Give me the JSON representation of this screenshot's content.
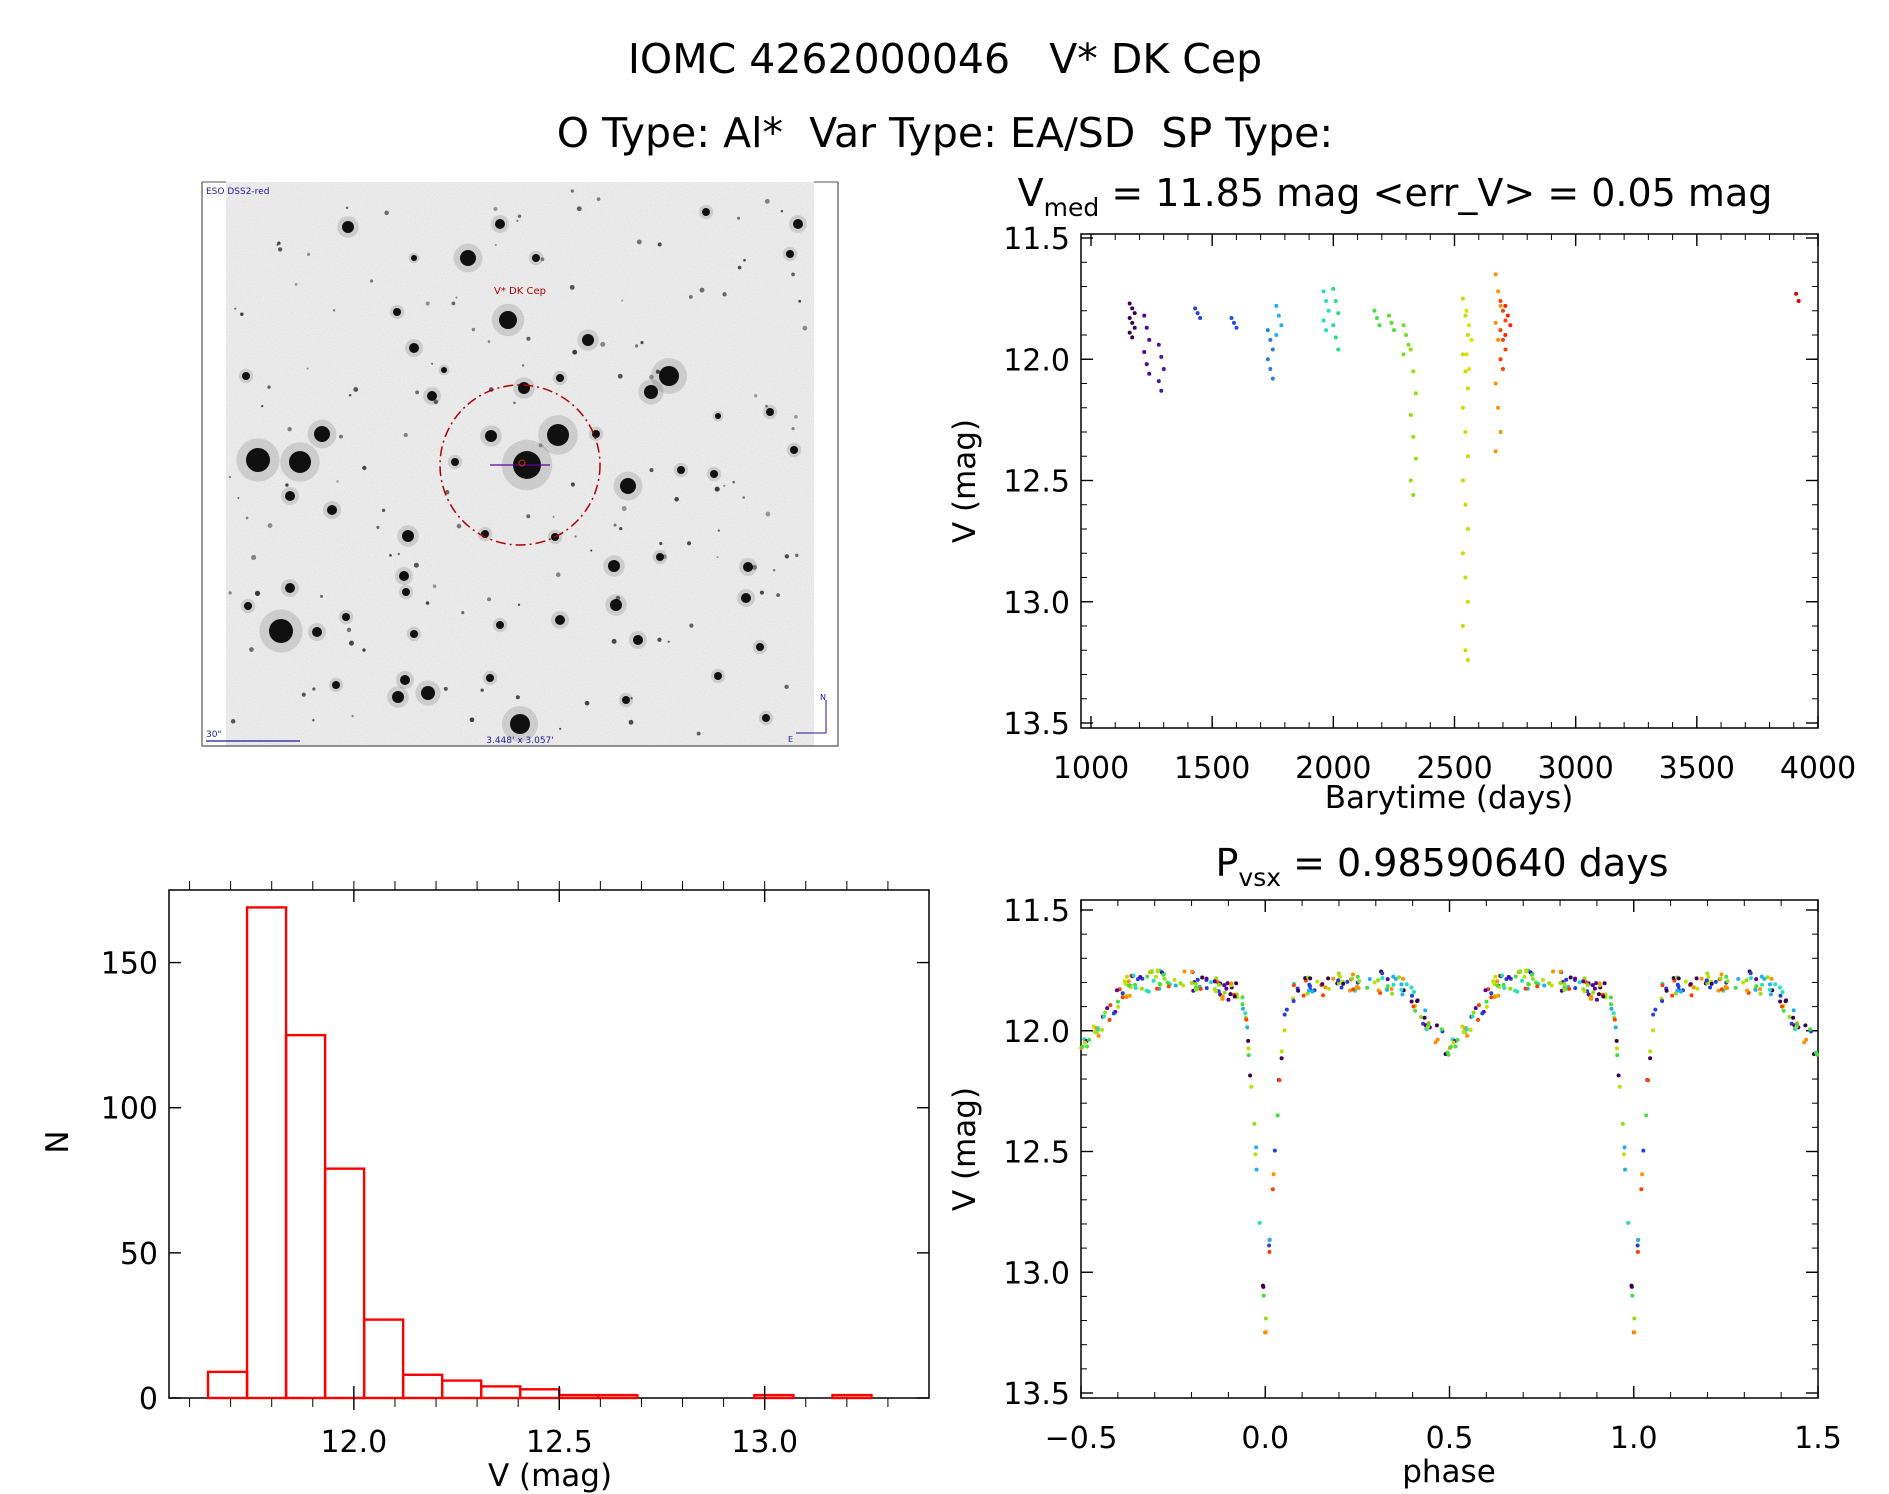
{
  "header": {
    "title_line1": "IOMC 4262000046   V* DK Cep",
    "title_line2": "O Type: Al*  Var Type: EA/SD  SP Type:"
  },
  "finder": {
    "survey_label": "ESO DSS2-red",
    "target_label": "V* DK Cep",
    "scale_label": "30\"",
    "fov_label": "3.448' x 3.057'",
    "compass_n": "N",
    "compass_e": "E"
  },
  "colors": {
    "histogram": "#ff0000",
    "marker_circle": "#b00000",
    "axis": "#000000"
  },
  "chart_data": [
    {
      "id": "lightcurve",
      "type": "scatter",
      "title_main": "V",
      "title_sub": "med",
      "title_rest": " = 11.85 mag <err_V> = 0.05 mag",
      "xlabel": "Barytime (days)",
      "ylabel": "V (mag)",
      "xlim": [
        1000,
        4000
      ],
      "ylim": [
        13.5,
        11.5
      ],
      "xticks": [
        1000,
        1500,
        2000,
        2500,
        3000,
        3500,
        4000
      ],
      "yticks": [
        11.5,
        12.0,
        12.5,
        13.0,
        13.5
      ],
      "ytick_labels": [
        "11.5",
        "12.0",
        "12.5",
        "13.0",
        "13.5"
      ],
      "groups": [
        {
          "x": 1170,
          "y": [
            11.77,
            11.79,
            11.81,
            11.83,
            11.85,
            11.87,
            11.89,
            11.91
          ],
          "color": "#3a0050"
        },
        {
          "x": 1230,
          "y": [
            11.82,
            11.87,
            11.92,
            11.97,
            12.02,
            12.06
          ],
          "color": "#5a00a0"
        },
        {
          "x": 1290,
          "y": [
            11.94,
            11.99,
            12.04,
            12.09,
            12.13
          ],
          "color": "#4a10b0"
        },
        {
          "x": 1440,
          "y": [
            11.79,
            11.81,
            11.83
          ],
          "color": "#2040e0"
        },
        {
          "x": 1590,
          "y": [
            11.83,
            11.85,
            11.87
          ],
          "color": "#2050e0"
        },
        {
          "x": 1740,
          "y": [
            11.88,
            11.92,
            11.96,
            12.0,
            12.04,
            12.08
          ],
          "color": "#2880e0"
        },
        {
          "x": 1775,
          "y": [
            11.78,
            11.82,
            11.86,
            11.9
          ],
          "color": "#20b0f0"
        },
        {
          "x": 1970,
          "y": [
            11.72,
            11.76,
            11.8,
            11.84,
            11.88
          ],
          "color": "#20e0c0"
        },
        {
          "x": 2010,
          "y": [
            11.71,
            11.76,
            11.81,
            11.86,
            11.91,
            11.96
          ],
          "color": "#20e080"
        },
        {
          "x": 2180,
          "y": [
            11.8,
            11.83,
            11.86
          ],
          "color": "#40e040"
        },
        {
          "x": 2240,
          "y": [
            11.82,
            11.85,
            11.88
          ],
          "color": "#50e030"
        },
        {
          "x": 2300,
          "y": [
            11.86,
            11.9,
            11.94,
            11.98
          ],
          "color": "#70e020"
        },
        {
          "x": 2330,
          "y": [
            11.96,
            12.05,
            12.14,
            12.23,
            12.32,
            12.41,
            12.5,
            12.56
          ],
          "color": "#90e010"
        },
        {
          "x": 2545,
          "y": [
            11.75,
            11.82,
            11.9,
            11.98,
            12.05,
            12.12,
            12.2,
            12.3,
            12.4,
            12.5,
            12.6,
            12.7,
            12.8,
            12.9,
            13.0,
            13.1,
            13.2,
            13.24
          ],
          "color": "#c0e000"
        },
        {
          "x": 2560,
          "y": [
            11.8,
            11.86,
            11.92,
            11.98,
            12.04
          ],
          "color": "#e0e000"
        },
        {
          "x": 2680,
          "y": [
            11.65,
            11.72,
            11.78,
            11.85,
            11.92,
            12.0,
            12.1,
            12.2,
            12.3,
            12.38
          ],
          "color": "#ff9000"
        },
        {
          "x": 2700,
          "y": [
            11.76,
            11.8,
            11.84,
            11.88,
            11.92,
            11.96,
            12.0,
            12.04
          ],
          "color": "#ff4000"
        },
        {
          "x": 2720,
          "y": [
            11.78,
            11.82,
            11.86,
            11.9
          ],
          "color": "#ff2000"
        },
        {
          "x": 3920,
          "y": [
            11.73,
            11.76
          ],
          "color": "#e00000"
        }
      ]
    },
    {
      "id": "histogram",
      "type": "bar",
      "xlabel": "V (mag)",
      "ylabel": "N",
      "xlim": [
        11.55,
        13.4
      ],
      "ylim": [
        0,
        175
      ],
      "xticks": [
        12.0,
        12.5,
        13.0
      ],
      "xtick_labels": [
        "12.0",
        "12.5",
        "13.0"
      ],
      "yticks": [
        0,
        50,
        100,
        150
      ],
      "bin_edges": [
        11.645,
        11.74,
        11.835,
        11.93,
        12.025,
        12.12,
        12.215,
        12.31,
        12.405,
        12.5,
        12.595,
        12.69,
        12.785,
        12.88,
        12.975,
        13.07,
        13.165,
        13.26
      ],
      "values": [
        9,
        169,
        125,
        79,
        27,
        8,
        6,
        4,
        3,
        1,
        1,
        0,
        0,
        0,
        1,
        0,
        1
      ]
    },
    {
      "id": "phased",
      "type": "scatter",
      "title_main": "P",
      "title_sub": "vsx",
      "title_rest": " = 0.98590640 days",
      "xlabel": "phase",
      "ylabel": "V (mag)",
      "xlim": [
        -0.5,
        1.5
      ],
      "ylim": [
        13.5,
        11.5
      ],
      "xticks": [
        -0.5,
        0.0,
        0.5,
        1.0,
        1.5
      ],
      "xtick_labels": [
        "−0.5",
        "0.0",
        "0.5",
        "1.0",
        "1.5"
      ],
      "yticks": [
        11.5,
        12.0,
        12.5,
        13.0,
        13.5
      ],
      "ytick_labels": [
        "11.5",
        "12.0",
        "12.5",
        "13.0",
        "13.5"
      ],
      "period_folded": true
    }
  ]
}
